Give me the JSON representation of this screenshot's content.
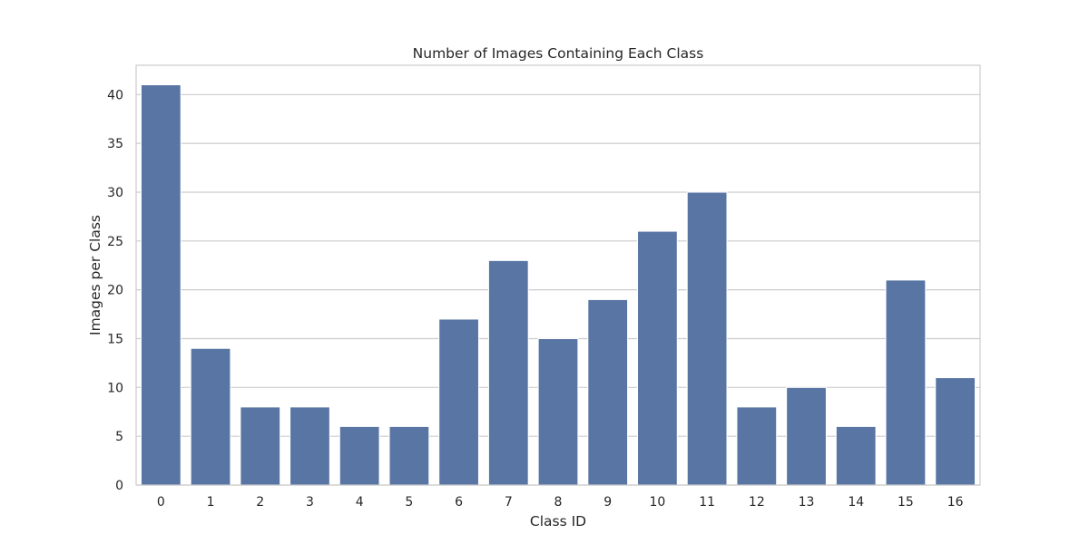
{
  "chart_data": {
    "type": "bar",
    "title": "Number of Images Containing Each Class",
    "xlabel": "Class ID",
    "ylabel": "Images per Class",
    "categories": [
      "0",
      "1",
      "2",
      "3",
      "4",
      "5",
      "6",
      "7",
      "8",
      "9",
      "10",
      "11",
      "12",
      "13",
      "14",
      "15",
      "16"
    ],
    "values": [
      41,
      14,
      8,
      8,
      6,
      6,
      17,
      23,
      15,
      19,
      26,
      30,
      8,
      10,
      6,
      21,
      11
    ],
    "ylim": [
      0,
      43
    ],
    "yticks": [
      0,
      5,
      10,
      15,
      20,
      25,
      30,
      35,
      40
    ],
    "grid": "horizontal",
    "bar_color": "#5875a4",
    "grid_color": "#cccccc",
    "frame_color": "#cccccc",
    "text_color": "#262626"
  }
}
